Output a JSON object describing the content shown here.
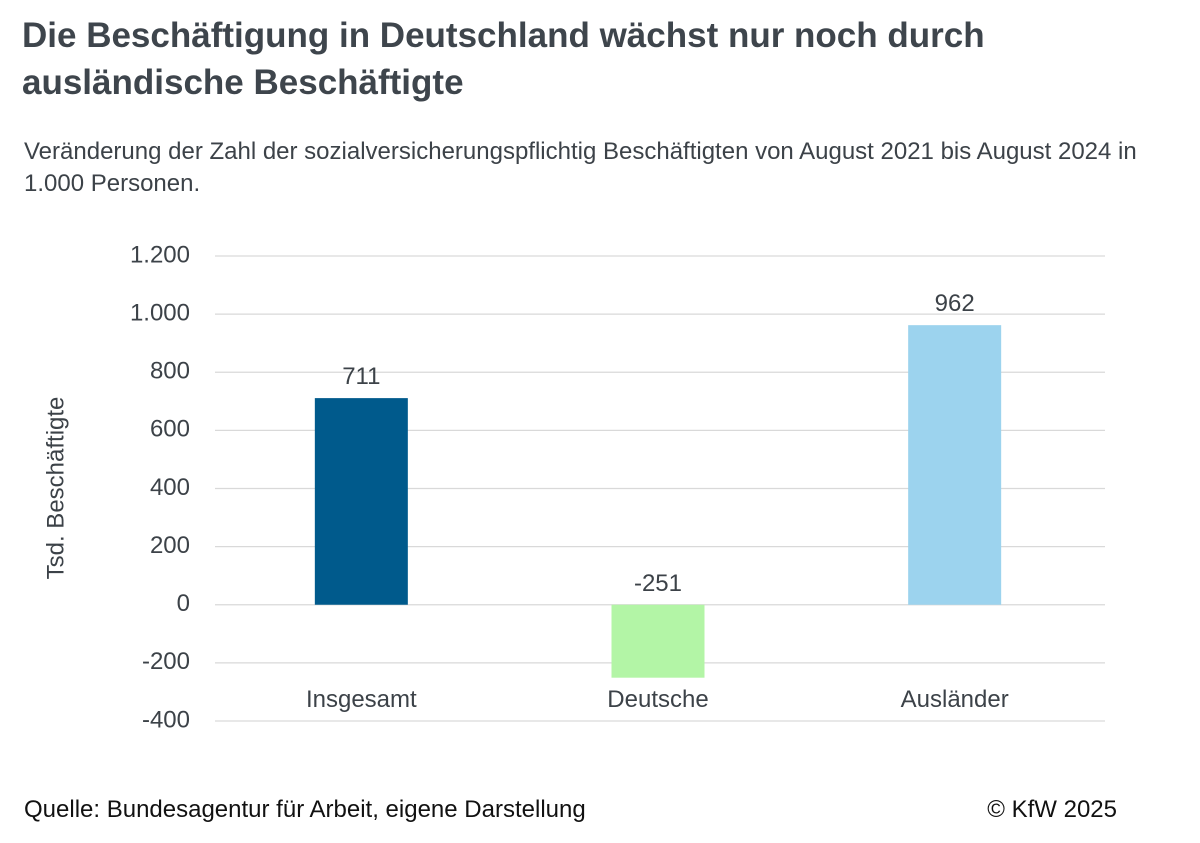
{
  "header": {
    "title": "Die Beschäftigung in Deutschland wächst nur noch durch ausländische Beschäftigte",
    "subtitle": "Veränderung der Zahl der sozialversicherungspflichtig Beschäftigten von August 2021 bis August 2024 in 1.000 Personen."
  },
  "chart_data": {
    "type": "bar",
    "title": "Die Beschäftigung in Deutschland wächst nur noch durch ausländische Beschäftigte",
    "subtitle": "Veränderung der Zahl der sozialversicherungspflichtig Beschäftigten von August 2021 bis August 2024 in 1.000 Personen.",
    "categories": [
      "Insgesamt",
      "Deutsche",
      "Ausländer"
    ],
    "values": [
      711,
      -251,
      962
    ],
    "data_labels": [
      "711",
      "-251",
      "962"
    ],
    "bar_colors": [
      "#005a8c",
      "#b3f5a6",
      "#9cd3ee"
    ],
    "xlabel": "",
    "ylabel": "Tsd. Beschäftigte",
    "ylim": [
      -400,
      1200
    ],
    "yticks": [
      -400,
      -200,
      0,
      200,
      400,
      600,
      800,
      1000,
      1200
    ],
    "ytick_labels": [
      "-400",
      "-200",
      "0",
      "200",
      "400",
      "600",
      "800",
      "1.000",
      "1.200"
    ],
    "grid": true,
    "legend": "none"
  },
  "footer": {
    "source": "Quelle: Bundesagentur für Arbeit, eigene Darstellung",
    "copyright": "© KfW 2025"
  },
  "colors": {
    "gridline": "#d9d9d9",
    "text": "#3c4248"
  }
}
